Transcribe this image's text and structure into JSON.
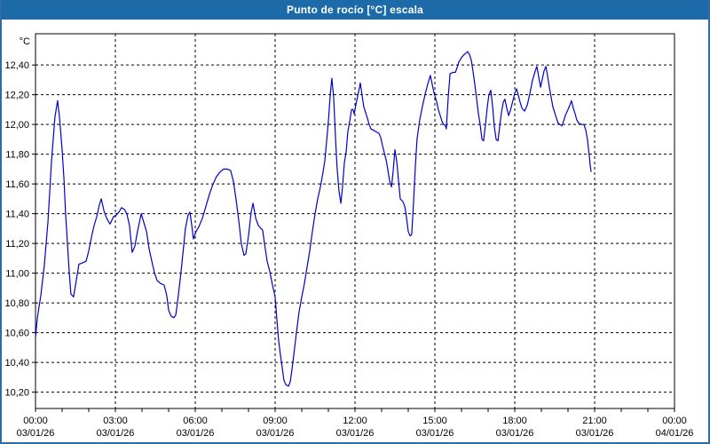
{
  "window": {
    "title": "Punto de rocío [°C] escala",
    "title_bar_color": "#1c6ba8",
    "frame_color": "#2e6da4",
    "background_color": "#ffffff"
  },
  "chart_data": {
    "type": "line",
    "title": "Punto de rocío [°C] escala",
    "xlabel": "",
    "ylabel": "°C",
    "y_unit_label": "°C",
    "grid": "dashed",
    "legend": "none",
    "line_color": "#0000c8",
    "grid_color": "#000000",
    "axis_color": "#000000",
    "ylim": [
      10.09,
      12.61
    ],
    "xlim_hours": [
      0,
      24
    ],
    "minor_x_tick_every_hours": 1,
    "y_ticks": [
      {
        "value": 12.4,
        "label": "12,40"
      },
      {
        "value": 12.2,
        "label": "12,20"
      },
      {
        "value": 12.0,
        "label": "12,00"
      },
      {
        "value": 11.8,
        "label": "11,80"
      },
      {
        "value": 11.6,
        "label": "11,60"
      },
      {
        "value": 11.4,
        "label": "11,40"
      },
      {
        "value": 11.2,
        "label": "11,20"
      },
      {
        "value": 11.0,
        "label": "11,00"
      },
      {
        "value": 10.8,
        "label": "10,80"
      },
      {
        "value": 10.6,
        "label": "10,60"
      },
      {
        "value": 10.4,
        "label": "10,40"
      },
      {
        "value": 10.2,
        "label": "10,20"
      }
    ],
    "x_ticks": [
      {
        "hour": 0,
        "time": "00:00",
        "date": "03/01/26"
      },
      {
        "hour": 3,
        "time": "03:00",
        "date": "03/01/26"
      },
      {
        "hour": 6,
        "time": "06:00",
        "date": "03/01/26"
      },
      {
        "hour": 9,
        "time": "09:00",
        "date": "03/01/26"
      },
      {
        "hour": 12,
        "time": "12:00",
        "date": "03/01/26"
      },
      {
        "hour": 15,
        "time": "15:00",
        "date": "03/01/26"
      },
      {
        "hour": 18,
        "time": "18:00",
        "date": "03/01/26"
      },
      {
        "hour": 21,
        "time": "21:00",
        "date": "03/01/26"
      },
      {
        "hour": 24,
        "time": "00:00",
        "date": "04/01/26"
      }
    ],
    "series": [
      {
        "name": "Punto de rocío",
        "points": [
          [
            0.0,
            10.57
          ],
          [
            0.07,
            10.7
          ],
          [
            0.2,
            10.85
          ],
          [
            0.33,
            11.05
          ],
          [
            0.47,
            11.35
          ],
          [
            0.6,
            11.75
          ],
          [
            0.73,
            12.05
          ],
          [
            0.83,
            12.16
          ],
          [
            0.9,
            12.05
          ],
          [
            1.0,
            11.83
          ],
          [
            1.07,
            11.63
          ],
          [
            1.13,
            11.4
          ],
          [
            1.2,
            11.2
          ],
          [
            1.27,
            11.0
          ],
          [
            1.33,
            10.86
          ],
          [
            1.43,
            10.84
          ],
          [
            1.53,
            10.95
          ],
          [
            1.63,
            11.06
          ],
          [
            1.77,
            11.07
          ],
          [
            1.9,
            11.08
          ],
          [
            2.0,
            11.15
          ],
          [
            2.1,
            11.24
          ],
          [
            2.2,
            11.32
          ],
          [
            2.3,
            11.38
          ],
          [
            2.4,
            11.46
          ],
          [
            2.47,
            11.5
          ],
          [
            2.57,
            11.42
          ],
          [
            2.67,
            11.37
          ],
          [
            2.8,
            11.33
          ],
          [
            2.93,
            11.38
          ],
          [
            3.03,
            11.39
          ],
          [
            3.13,
            11.41
          ],
          [
            3.23,
            11.44
          ],
          [
            3.33,
            11.43
          ],
          [
            3.43,
            11.4
          ],
          [
            3.53,
            11.32
          ],
          [
            3.63,
            11.14
          ],
          [
            3.73,
            11.18
          ],
          [
            3.83,
            11.28
          ],
          [
            3.97,
            11.4
          ],
          [
            4.07,
            11.34
          ],
          [
            4.17,
            11.28
          ],
          [
            4.27,
            11.16
          ],
          [
            4.37,
            11.08
          ],
          [
            4.47,
            11.0
          ],
          [
            4.57,
            10.95
          ],
          [
            4.7,
            10.93
          ],
          [
            4.83,
            10.92
          ],
          [
            4.93,
            10.85
          ],
          [
            5.0,
            10.75
          ],
          [
            5.1,
            10.71
          ],
          [
            5.2,
            10.7
          ],
          [
            5.27,
            10.72
          ],
          [
            5.33,
            10.8
          ],
          [
            5.43,
            10.95
          ],
          [
            5.53,
            11.12
          ],
          [
            5.63,
            11.3
          ],
          [
            5.73,
            11.39
          ],
          [
            5.8,
            11.41
          ],
          [
            5.87,
            11.32
          ],
          [
            5.93,
            11.23
          ],
          [
            6.03,
            11.28
          ],
          [
            6.13,
            11.31
          ],
          [
            6.27,
            11.37
          ],
          [
            6.4,
            11.45
          ],
          [
            6.53,
            11.53
          ],
          [
            6.67,
            11.6
          ],
          [
            6.8,
            11.65
          ],
          [
            6.93,
            11.68
          ],
          [
            7.07,
            11.7
          ],
          [
            7.2,
            11.7
          ],
          [
            7.33,
            11.69
          ],
          [
            7.43,
            11.62
          ],
          [
            7.53,
            11.5
          ],
          [
            7.63,
            11.36
          ],
          [
            7.73,
            11.2
          ],
          [
            7.83,
            11.12
          ],
          [
            7.9,
            11.13
          ],
          [
            8.0,
            11.25
          ],
          [
            8.1,
            11.41
          ],
          [
            8.17,
            11.47
          ],
          [
            8.27,
            11.37
          ],
          [
            8.37,
            11.32
          ],
          [
            8.47,
            11.3
          ],
          [
            8.53,
            11.29
          ],
          [
            8.6,
            11.2
          ],
          [
            8.7,
            11.08
          ],
          [
            8.8,
            11.01
          ],
          [
            8.9,
            10.92
          ],
          [
            9.0,
            10.84
          ],
          [
            9.07,
            10.68
          ],
          [
            9.13,
            10.55
          ],
          [
            9.2,
            10.45
          ],
          [
            9.27,
            10.36
          ],
          [
            9.33,
            10.28
          ],
          [
            9.4,
            10.25
          ],
          [
            9.5,
            10.24
          ],
          [
            9.57,
            10.27
          ],
          [
            9.63,
            10.35
          ],
          [
            9.7,
            10.45
          ],
          [
            9.8,
            10.6
          ],
          [
            9.9,
            10.74
          ],
          [
            10.0,
            10.84
          ],
          [
            10.1,
            10.93
          ],
          [
            10.2,
            11.04
          ],
          [
            10.3,
            11.15
          ],
          [
            10.4,
            11.28
          ],
          [
            10.5,
            11.4
          ],
          [
            10.6,
            11.5
          ],
          [
            10.7,
            11.58
          ],
          [
            10.8,
            11.68
          ],
          [
            10.87,
            11.76
          ],
          [
            10.93,
            11.88
          ],
          [
            11.0,
            12.02
          ],
          [
            11.07,
            12.2
          ],
          [
            11.13,
            12.31
          ],
          [
            11.2,
            12.18
          ],
          [
            11.27,
            11.9
          ],
          [
            11.33,
            11.7
          ],
          [
            11.4,
            11.55
          ],
          [
            11.47,
            11.47
          ],
          [
            11.53,
            11.58
          ],
          [
            11.6,
            11.74
          ],
          [
            11.67,
            11.82
          ],
          [
            11.73,
            11.95
          ],
          [
            11.8,
            12.02
          ],
          [
            11.87,
            12.1
          ],
          [
            11.93,
            12.1
          ],
          [
            11.97,
            12.07
          ],
          [
            12.03,
            12.13
          ],
          [
            12.1,
            12.19
          ],
          [
            12.17,
            12.25
          ],
          [
            12.2,
            12.28
          ],
          [
            12.27,
            12.19
          ],
          [
            12.33,
            12.12
          ],
          [
            12.4,
            12.08
          ],
          [
            12.47,
            12.04
          ],
          [
            12.53,
            12.0
          ],
          [
            12.6,
            11.97
          ],
          [
            12.7,
            11.96
          ],
          [
            12.8,
            11.95
          ],
          [
            12.9,
            11.94
          ],
          [
            12.97,
            11.91
          ],
          [
            13.03,
            11.86
          ],
          [
            13.1,
            11.81
          ],
          [
            13.17,
            11.76
          ],
          [
            13.23,
            11.7
          ],
          [
            13.3,
            11.62
          ],
          [
            13.37,
            11.58
          ],
          [
            13.43,
            11.68
          ],
          [
            13.5,
            11.83
          ],
          [
            13.57,
            11.75
          ],
          [
            13.63,
            11.63
          ],
          [
            13.7,
            11.5
          ],
          [
            13.8,
            11.48
          ],
          [
            13.87,
            11.45
          ],
          [
            13.93,
            11.38
          ],
          [
            14.0,
            11.28
          ],
          [
            14.07,
            11.25
          ],
          [
            14.13,
            11.26
          ],
          [
            14.2,
            11.48
          ],
          [
            14.27,
            11.73
          ],
          [
            14.33,
            11.9
          ],
          [
            14.43,
            12.03
          ],
          [
            14.53,
            12.12
          ],
          [
            14.63,
            12.2
          ],
          [
            14.73,
            12.27
          ],
          [
            14.83,
            12.33
          ],
          [
            14.9,
            12.27
          ],
          [
            14.97,
            12.21
          ],
          [
            15.07,
            12.15
          ],
          [
            15.13,
            12.1
          ],
          [
            15.2,
            12.06
          ],
          [
            15.27,
            12.02
          ],
          [
            15.33,
            12.0
          ],
          [
            15.4,
            11.99
          ],
          [
            15.43,
            11.97
          ],
          [
            15.5,
            12.18
          ],
          [
            15.57,
            12.34
          ],
          [
            15.67,
            12.35
          ],
          [
            15.77,
            12.35
          ],
          [
            15.83,
            12.38
          ],
          [
            15.9,
            12.42
          ],
          [
            16.0,
            12.45
          ],
          [
            16.1,
            12.47
          ],
          [
            16.17,
            12.48
          ],
          [
            16.23,
            12.49
          ],
          [
            16.3,
            12.47
          ],
          [
            16.37,
            12.43
          ],
          [
            16.43,
            12.36
          ],
          [
            16.5,
            12.27
          ],
          [
            16.57,
            12.17
          ],
          [
            16.63,
            12.08
          ],
          [
            16.7,
            12.0
          ],
          [
            16.77,
            11.9
          ],
          [
            16.83,
            11.89
          ],
          [
            16.9,
            12.0
          ],
          [
            16.97,
            12.12
          ],
          [
            17.03,
            12.2
          ],
          [
            17.1,
            12.23
          ],
          [
            17.17,
            12.12
          ],
          [
            17.23,
            11.99
          ],
          [
            17.3,
            11.9
          ],
          [
            17.37,
            11.89
          ],
          [
            17.43,
            11.98
          ],
          [
            17.5,
            12.08
          ],
          [
            17.57,
            12.15
          ],
          [
            17.63,
            12.17
          ],
          [
            17.7,
            12.11
          ],
          [
            17.77,
            12.06
          ],
          [
            17.83,
            12.09
          ],
          [
            17.93,
            12.16
          ],
          [
            18.0,
            12.21
          ],
          [
            18.07,
            12.24
          ],
          [
            18.13,
            12.2
          ],
          [
            18.2,
            12.15
          ],
          [
            18.27,
            12.11
          ],
          [
            18.37,
            12.09
          ],
          [
            18.47,
            12.13
          ],
          [
            18.57,
            12.21
          ],
          [
            18.67,
            12.3
          ],
          [
            18.77,
            12.36
          ],
          [
            18.83,
            12.39
          ],
          [
            18.9,
            12.32
          ],
          [
            18.97,
            12.25
          ],
          [
            19.03,
            12.3
          ],
          [
            19.1,
            12.36
          ],
          [
            19.17,
            12.39
          ],
          [
            19.23,
            12.33
          ],
          [
            19.3,
            12.25
          ],
          [
            19.37,
            12.18
          ],
          [
            19.43,
            12.12
          ],
          [
            19.5,
            12.08
          ],
          [
            19.57,
            12.04
          ],
          [
            19.63,
            12.01
          ],
          [
            19.7,
            12.0
          ],
          [
            19.77,
            11.99
          ],
          [
            19.83,
            12.02
          ],
          [
            19.9,
            12.06
          ],
          [
            20.0,
            12.1
          ],
          [
            20.07,
            12.13
          ],
          [
            20.13,
            12.16
          ],
          [
            20.2,
            12.11
          ],
          [
            20.27,
            12.07
          ],
          [
            20.33,
            12.03
          ],
          [
            20.4,
            12.01
          ],
          [
            20.5,
            12.0
          ],
          [
            20.6,
            12.0
          ],
          [
            20.67,
            11.96
          ],
          [
            20.73,
            11.9
          ],
          [
            20.8,
            11.79
          ],
          [
            20.83,
            11.73
          ],
          [
            20.87,
            11.68
          ]
        ]
      }
    ]
  }
}
